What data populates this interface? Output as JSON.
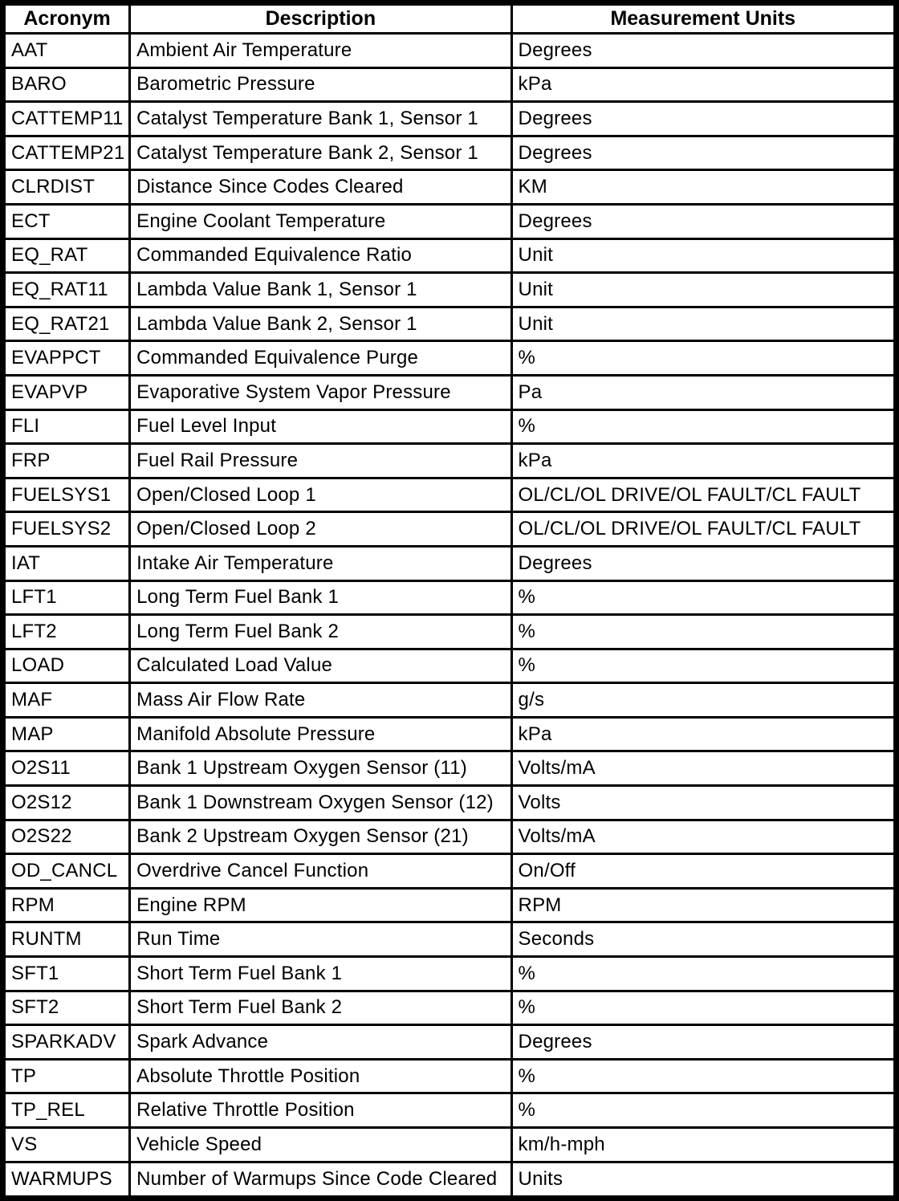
{
  "table": {
    "columns": [
      "Acronym",
      "Description",
      "Measurement Units"
    ],
    "rows": [
      {
        "acronym": "AAT",
        "description": "Ambient Air Temperature",
        "units": "Degrees"
      },
      {
        "acronym": "BARO",
        "description": "Barometric Pressure",
        "units": "kPa"
      },
      {
        "acronym": "CATTEMP11",
        "description": "Catalyst Temperature Bank 1, Sensor 1",
        "units": "Degrees"
      },
      {
        "acronym": "CATTEMP21",
        "description": "Catalyst Temperature Bank 2, Sensor 1",
        "units": "Degrees"
      },
      {
        "acronym": "CLRDIST",
        "description": "Distance Since Codes Cleared",
        "units": "KM"
      },
      {
        "acronym": "ECT",
        "description": "Engine Coolant Temperature",
        "units": "Degrees"
      },
      {
        "acronym": "EQ_RAT",
        "description": "Commanded Equivalence Ratio",
        "units": "Unit"
      },
      {
        "acronym": "EQ_RAT11",
        "description": "Lambda Value Bank 1, Sensor 1",
        "units": "Unit"
      },
      {
        "acronym": "EQ_RAT21",
        "description": "Lambda Value Bank 2, Sensor 1",
        "units": "Unit"
      },
      {
        "acronym": "EVAPPCT",
        "description": "Commanded Equivalence Purge",
        "units": "%"
      },
      {
        "acronym": "EVAPVP",
        "description": "Evaporative System Vapor Pressure",
        "units": "Pa"
      },
      {
        "acronym": "FLI",
        "description": "Fuel Level Input",
        "units": "%"
      },
      {
        "acronym": "FRP",
        "description": "Fuel Rail Pressure",
        "units": "kPa"
      },
      {
        "acronym": "FUELSYS1",
        "description": "Open/Closed Loop 1",
        "units": "OL/CL/OL DRIVE/OL FAULT/CL FAULT"
      },
      {
        "acronym": "FUELSYS2",
        "description": "Open/Closed Loop 2",
        "units": "OL/CL/OL DRIVE/OL FAULT/CL FAULT"
      },
      {
        "acronym": "IAT",
        "description": "Intake Air Temperature",
        "units": "Degrees"
      },
      {
        "acronym": "LFT1",
        "description": "Long Term Fuel Bank 1",
        "units": "%"
      },
      {
        "acronym": "LFT2",
        "description": "Long Term Fuel Bank 2",
        "units": "%"
      },
      {
        "acronym": "LOAD",
        "description": "Calculated Load Value",
        "units": "%"
      },
      {
        "acronym": "MAF",
        "description": "Mass Air Flow Rate",
        "units": "g/s"
      },
      {
        "acronym": "MAP",
        "description": "Manifold Absolute Pressure",
        "units": "kPa"
      },
      {
        "acronym": "O2S11",
        "description": "Bank 1 Upstream Oxygen Sensor (11)",
        "units": "Volts/mA"
      },
      {
        "acronym": "O2S12",
        "description": "Bank 1 Downstream Oxygen Sensor (12)",
        "units": "Volts"
      },
      {
        "acronym": "O2S22",
        "description": "Bank 2 Upstream Oxygen Sensor (21)",
        "units": "Volts/mA"
      },
      {
        "acronym": "OD_CANCL",
        "description": "Overdrive Cancel Function",
        "units": "On/Off"
      },
      {
        "acronym": "RPM",
        "description": "Engine RPM",
        "units": "RPM"
      },
      {
        "acronym": "RUNTM",
        "description": "Run Time",
        "units": "Seconds"
      },
      {
        "acronym": "SFT1",
        "description": "Short Term Fuel Bank 1",
        "units": "%"
      },
      {
        "acronym": "SFT2",
        "description": "Short Term Fuel Bank 2",
        "units": "%"
      },
      {
        "acronym": "SPARKADV",
        "description": "Spark Advance",
        "units": "Degrees"
      },
      {
        "acronym": "TP",
        "description": "Absolute Throttle Position",
        "units": "%"
      },
      {
        "acronym": "TP_REL",
        "description": "Relative Throttle Position",
        "units": "%"
      },
      {
        "acronym": "VS",
        "description": "Vehicle Speed",
        "units": "km/h-mph"
      },
      {
        "acronym": "WARMUPS",
        "description": "Number of Warmups Since Code Cleared",
        "units": "Units"
      }
    ]
  }
}
